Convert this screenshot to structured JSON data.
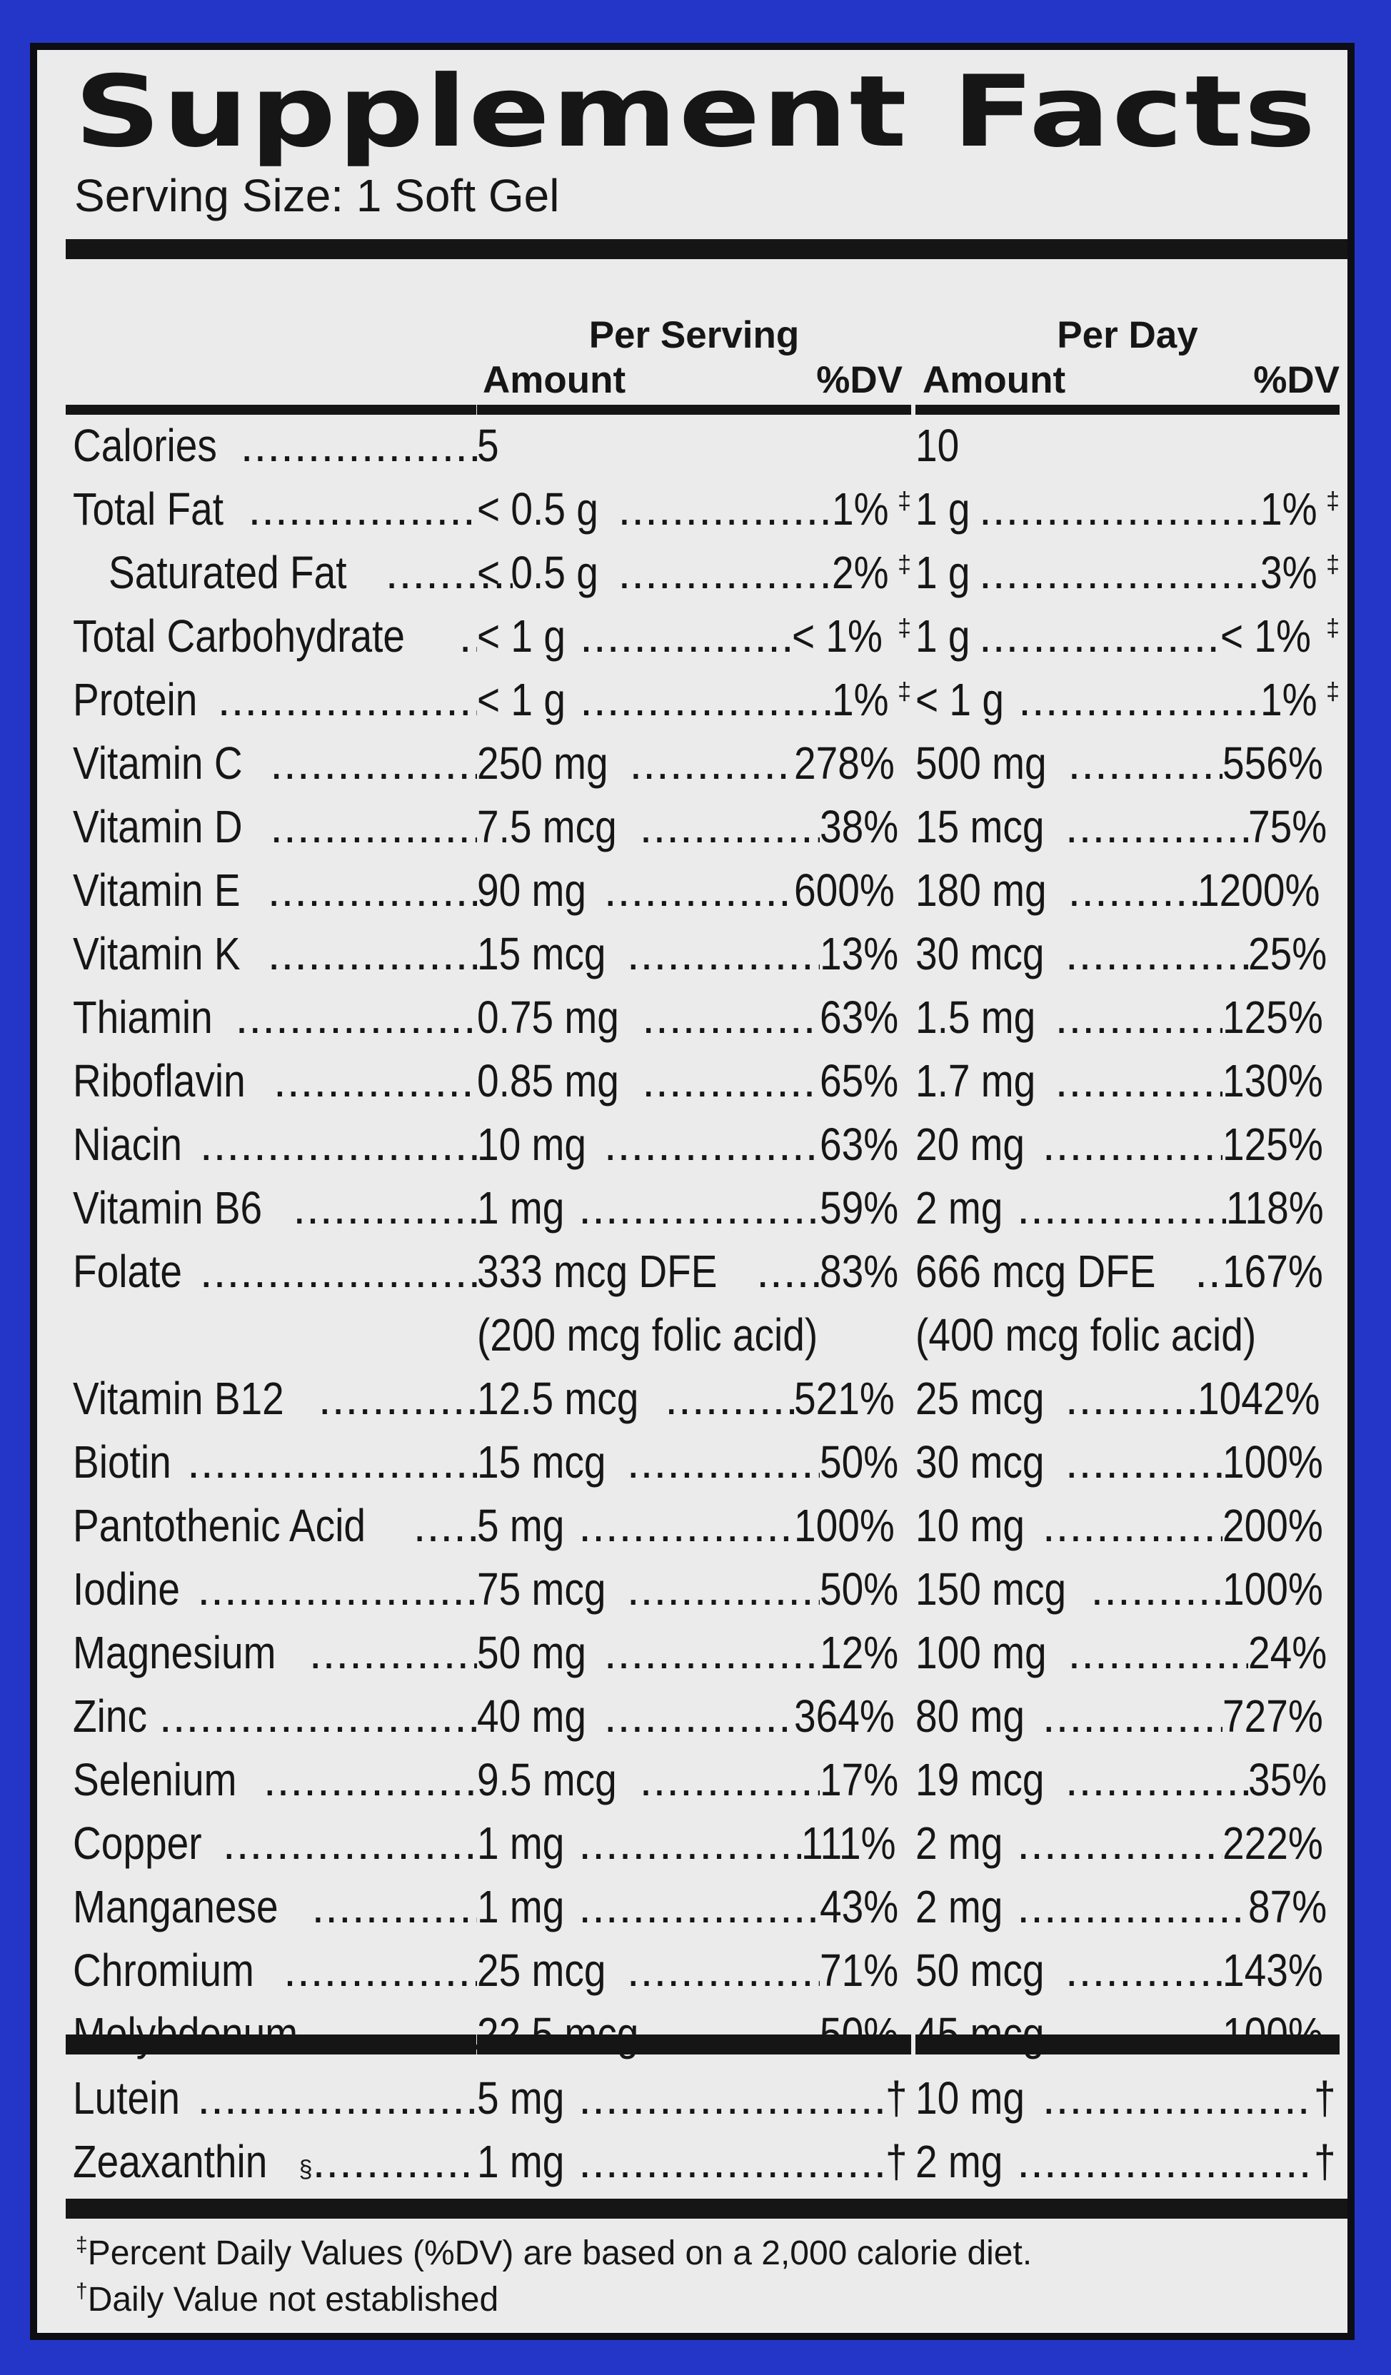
{
  "title": "Supplement Facts",
  "serving_size": "Serving Size: 1 Soft Gel",
  "headers": {
    "per_serving": "Per Serving",
    "per_day": "Per Day",
    "amount": "Amount",
    "dv": "%DV"
  },
  "rows": [
    {
      "name": "Calories",
      "ps_amount": "5",
      "ps_dv": "",
      "pd_amount": "10",
      "pd_dv": "",
      "indent": false,
      "sup": ""
    },
    {
      "name": "Total Fat",
      "ps_amount": "< 0.5 g",
      "ps_dv": "1%",
      "pd_amount": "1 g",
      "pd_dv": "1%",
      "indent": false,
      "sup": "‡"
    },
    {
      "name": "Saturated Fat",
      "ps_amount": "< 0.5 g",
      "ps_dv": "2%",
      "pd_amount": "1 g",
      "pd_dv": "3%",
      "indent": true,
      "sup": "‡"
    },
    {
      "name": "Total Carbohydrate",
      "ps_amount": "< 1 g",
      "ps_dv": "< 1%",
      "pd_amount": "1 g",
      "pd_dv": "< 1%",
      "indent": false,
      "sup": "‡"
    },
    {
      "name": "Protein",
      "ps_amount": "< 1 g",
      "ps_dv": "1%",
      "pd_amount": "< 1 g",
      "pd_dv": "1%",
      "indent": false,
      "sup": "‡"
    },
    {
      "name": "Vitamin C",
      "ps_amount": "250 mg",
      "ps_dv": "278%",
      "pd_amount": "500 mg",
      "pd_dv": "556%",
      "indent": false,
      "sup": ""
    },
    {
      "name": "Vitamin D",
      "ps_amount": "7.5 mcg",
      "ps_dv": "38%",
      "pd_amount": "15 mcg",
      "pd_dv": "75%",
      "indent": false,
      "sup": ""
    },
    {
      "name": "Vitamin E",
      "ps_amount": "90 mg",
      "ps_dv": "600%",
      "pd_amount": "180 mg",
      "pd_dv": "1200%",
      "indent": false,
      "sup": ""
    },
    {
      "name": "Vitamin K",
      "ps_amount": "15 mcg",
      "ps_dv": "13%",
      "pd_amount": "30 mcg",
      "pd_dv": "25%",
      "indent": false,
      "sup": ""
    },
    {
      "name": "Thiamin",
      "ps_amount": "0.75 mg",
      "ps_dv": "63%",
      "pd_amount": "1.5 mg",
      "pd_dv": "125%",
      "indent": false,
      "sup": ""
    },
    {
      "name": "Riboflavin",
      "ps_amount": "0.85 mg",
      "ps_dv": "65%",
      "pd_amount": "1.7 mg",
      "pd_dv": "130%",
      "indent": false,
      "sup": ""
    },
    {
      "name": "Niacin",
      "ps_amount": "10 mg",
      "ps_dv": "63%",
      "pd_amount": "20 mg",
      "pd_dv": "125%",
      "indent": false,
      "sup": ""
    },
    {
      "name": "Vitamin B6",
      "ps_amount": "1 mg",
      "ps_dv": "59%",
      "pd_amount": "2 mg",
      "pd_dv": "118%",
      "indent": false,
      "sup": ""
    },
    {
      "name": "Folate",
      "ps_amount": "333 mcg DFE",
      "ps_dv": "83%",
      "pd_amount": "666 mcg DFE",
      "pd_dv": "167%",
      "indent": false,
      "sup": ""
    },
    {
      "name": "",
      "ps_amount": "(200 mcg folic acid)",
      "ps_dv": "",
      "pd_amount": "(400 mcg folic acid)",
      "pd_dv": "",
      "indent": false,
      "sup": "",
      "sub": true
    },
    {
      "name": "Vitamin B12",
      "ps_amount": "12.5 mcg",
      "ps_dv": "521%",
      "pd_amount": "25 mcg",
      "pd_dv": "1042%",
      "indent": false,
      "sup": ""
    },
    {
      "name": "Biotin",
      "ps_amount": "15 mcg",
      "ps_dv": "50%",
      "pd_amount": "30 mcg",
      "pd_dv": "100%",
      "indent": false,
      "sup": ""
    },
    {
      "name": "Pantothenic Acid",
      "ps_amount": "5 mg",
      "ps_dv": "100%",
      "pd_amount": "10 mg",
      "pd_dv": "200%",
      "indent": false,
      "sup": ""
    },
    {
      "name": "Iodine",
      "ps_amount": "75 mcg",
      "ps_dv": "50%",
      "pd_amount": "150 mcg",
      "pd_dv": "100%",
      "indent": false,
      "sup": ""
    },
    {
      "name": "Magnesium",
      "ps_amount": "50 mg",
      "ps_dv": "12%",
      "pd_amount": "100 mg",
      "pd_dv": "24%",
      "indent": false,
      "sup": ""
    },
    {
      "name": "Zinc",
      "ps_amount": "40 mg",
      "ps_dv": "364%",
      "pd_amount": "80 mg",
      "pd_dv": "727%",
      "indent": false,
      "sup": ""
    },
    {
      "name": "Selenium",
      "ps_amount": "9.5 mcg",
      "ps_dv": "17%",
      "pd_amount": "19 mcg",
      "pd_dv": "35%",
      "indent": false,
      "sup": ""
    },
    {
      "name": "Copper",
      "ps_amount": "1 mg",
      "ps_dv": "111%",
      "pd_amount": "2 mg",
      "pd_dv": "222%",
      "indent": false,
      "sup": ""
    },
    {
      "name": "Manganese",
      "ps_amount": "1 mg",
      "ps_dv": "43%",
      "pd_amount": "2 mg",
      "pd_dv": "87%",
      "indent": false,
      "sup": ""
    },
    {
      "name": "Chromium",
      "ps_amount": "25 mcg",
      "ps_dv": "71%",
      "pd_amount": "50 mcg",
      "pd_dv": "143%",
      "indent": false,
      "sup": ""
    },
    {
      "name": "Molybdenum",
      "ps_amount": "22.5 mcg",
      "ps_dv": "50%",
      "pd_amount": "45 mcg",
      "pd_dv": "100%",
      "indent": false,
      "sup": ""
    }
  ],
  "other_rows": [
    {
      "name": "Lutein",
      "name_sup": "",
      "ps_amount": "5 mg",
      "ps_dv": "†",
      "pd_amount": "10 mg",
      "pd_dv": "†"
    },
    {
      "name": "Zeaxanthin",
      "name_sup": "§",
      "ps_amount": "1 mg",
      "ps_dv": "†",
      "pd_amount": "2 mg",
      "pd_dv": "†"
    }
  ],
  "footnotes": [
    {
      "symbol": "‡",
      "text": "Percent Daily Values (%DV) are based on a 2,000 calorie diet."
    },
    {
      "symbol": "†",
      "text": "Daily Value not established"
    }
  ]
}
